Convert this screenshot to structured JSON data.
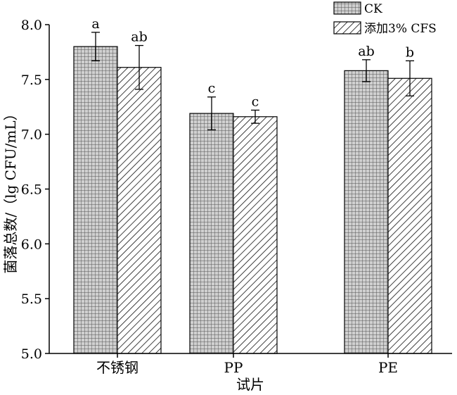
{
  "chart_data": {
    "type": "bar",
    "xlabel": "试片",
    "ylabel": "菌落总数/（lg CFU/mL）",
    "ylim": [
      5.0,
      8.0
    ],
    "yticks": [
      "5.0",
      "5.5",
      "6.0",
      "6.5",
      "7.0",
      "7.5",
      "8.0"
    ],
    "categories": [
      "不锈钢",
      "PP",
      "PE"
    ],
    "grid": false,
    "legend_position": "top-right",
    "series": [
      {
        "name": "CK",
        "pattern": "crosshatch-grid",
        "values": [
          7.8,
          7.19,
          7.58
        ],
        "errors": [
          0.13,
          0.15,
          0.1
        ],
        "labels": [
          "a",
          "c",
          "ab"
        ]
      },
      {
        "name": "添加3% CFS",
        "pattern": "diagonal-hatch",
        "values": [
          7.61,
          7.16,
          7.51
        ],
        "errors": [
          0.2,
          0.06,
          0.16
        ],
        "labels": [
          "ab",
          "c",
          "b"
        ]
      }
    ]
  }
}
